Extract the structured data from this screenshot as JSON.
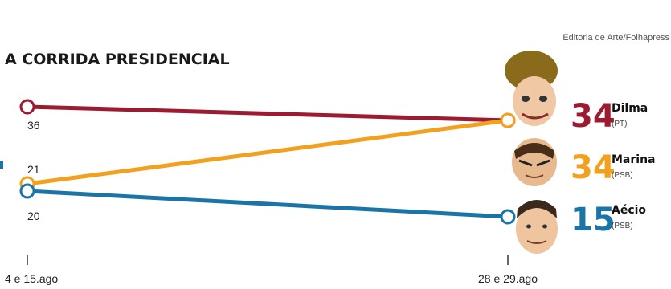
{
  "source_credit": "Editoria de Arte/Folhapress",
  "chart_data": {
    "type": "line",
    "title": "A CORRIDA PRESIDENCIAL",
    "categories": [
      "4 e 15.ago",
      "28 e 29.ago"
    ],
    "ylim": [
      10,
      40
    ],
    "grid": false,
    "legend": "right, candidate labels beside line ends",
    "series": [
      {
        "name": "Dilma",
        "party": "(PT)",
        "values": [
          36,
          34
        ],
        "color": "#9b1b30",
        "start_label": "36",
        "end_label": "34"
      },
      {
        "name": "Marina",
        "party": "(PSB)",
        "values": [
          21,
          34
        ],
        "color": "#f2a11e",
        "start_label": "21",
        "end_label": "34"
      },
      {
        "name": "Aécio",
        "party": "(PSB)",
        "values": [
          20,
          15
        ],
        "color": "#1b74a8",
        "start_label": "20",
        "end_label": "15"
      }
    ]
  }
}
